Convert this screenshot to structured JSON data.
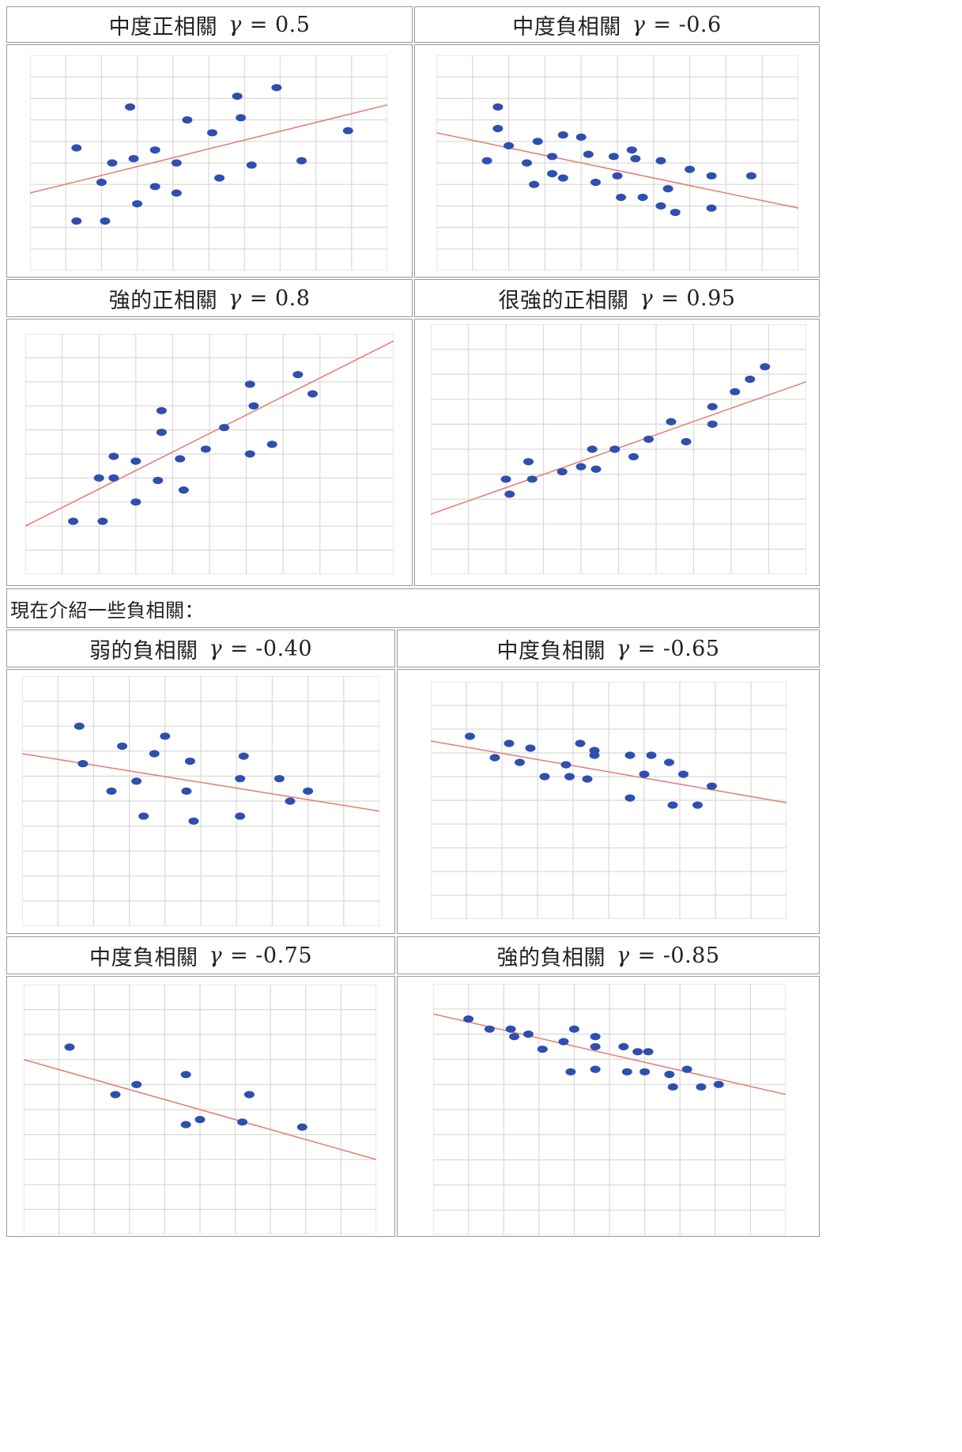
{
  "colors": {
    "point": "#2f4fae",
    "trend": "#e97a70",
    "grid": "#d9d9d9",
    "border": "#9a9a9a"
  },
  "intro_text": "現在介紹一些負相關：",
  "panels": [
    {
      "title": "中度正相關",
      "symbol": "γ",
      "value": "= 0.5"
    },
    {
      "title": "中度負相關",
      "symbol": "γ",
      "value": "= -0.6"
    },
    {
      "title": "強的正相關",
      "symbol": "γ",
      "value": "= 0.8"
    },
    {
      "title": "很強的正相關",
      "symbol": "γ",
      "value": "= 0.95"
    },
    {
      "title": "弱的負相關",
      "symbol": "γ",
      "value": "= -0.40"
    },
    {
      "title": "中度負相關",
      "symbol": "γ",
      "value": "= -0.65"
    },
    {
      "title": "中度負相關",
      "symbol": "γ",
      "value": "= -0.75"
    },
    {
      "title": "強的負相關",
      "symbol": "γ",
      "value": "= -0.85"
    }
  ],
  "chart_data": [
    {
      "type": "scatter",
      "title": "中度正相關 γ = 0.5",
      "xlim": [
        0,
        10
      ],
      "ylim": [
        0,
        10
      ],
      "grid": true,
      "points": [
        [
          1.3,
          2.3
        ],
        [
          1.3,
          5.7
        ],
        [
          2.1,
          2.3
        ],
        [
          2.0,
          4.1
        ],
        [
          2.3,
          5.0
        ],
        [
          2.8,
          7.6
        ],
        [
          2.9,
          5.2
        ],
        [
          3.0,
          3.1
        ],
        [
          3.5,
          3.9
        ],
        [
          3.5,
          5.6
        ],
        [
          4.1,
          5.0
        ],
        [
          4.1,
          3.6
        ],
        [
          4.4,
          7.0
        ],
        [
          5.1,
          6.4
        ],
        [
          5.3,
          4.3
        ],
        [
          5.8,
          8.1
        ],
        [
          5.9,
          7.1
        ],
        [
          6.2,
          4.9
        ],
        [
          6.9,
          8.5
        ],
        [
          7.6,
          5.1
        ],
        [
          8.9,
          6.5
        ]
      ],
      "trend": [
        [
          0,
          3.6
        ],
        [
          10,
          7.7
        ]
      ]
    },
    {
      "type": "scatter",
      "title": "中度負相關 γ = -0.6",
      "xlim": [
        0,
        10
      ],
      "ylim": [
        0,
        10
      ],
      "grid": true,
      "points": [
        [
          1.4,
          5.1
        ],
        [
          1.7,
          7.6
        ],
        [
          1.7,
          6.6
        ],
        [
          2.0,
          5.8
        ],
        [
          2.5,
          5.0
        ],
        [
          2.8,
          6.0
        ],
        [
          2.7,
          4.0
        ],
        [
          3.2,
          4.5
        ],
        [
          3.2,
          5.3
        ],
        [
          3.5,
          6.3
        ],
        [
          3.5,
          4.3
        ],
        [
          4.0,
          6.2
        ],
        [
          4.2,
          5.4
        ],
        [
          4.4,
          4.1
        ],
        [
          4.9,
          5.3
        ],
        [
          5.0,
          4.4
        ],
        [
          5.1,
          3.4
        ],
        [
          5.4,
          5.6
        ],
        [
          5.5,
          5.2
        ],
        [
          5.7,
          3.4
        ],
        [
          6.2,
          5.1
        ],
        [
          6.2,
          3.0
        ],
        [
          6.4,
          3.8
        ],
        [
          6.6,
          2.7
        ],
        [
          7.0,
          4.7
        ],
        [
          7.6,
          4.4
        ],
        [
          7.6,
          2.9
        ],
        [
          8.7,
          4.4
        ]
      ],
      "trend": [
        [
          0,
          6.4
        ],
        [
          10,
          2.9
        ]
      ]
    },
    {
      "type": "scatter",
      "title": "強的正相關 γ = 0.8",
      "xlim": [
        0,
        10
      ],
      "ylim": [
        0,
        10
      ],
      "grid": true,
      "points": [
        [
          1.3,
          2.2
        ],
        [
          2.1,
          2.2
        ],
        [
          2.0,
          4.0
        ],
        [
          2.4,
          4.0
        ],
        [
          2.4,
          4.9
        ],
        [
          3.0,
          3.0
        ],
        [
          3.0,
          4.7
        ],
        [
          3.7,
          5.9
        ],
        [
          3.7,
          6.8
        ],
        [
          3.6,
          3.9
        ],
        [
          4.2,
          4.8
        ],
        [
          4.3,
          3.5
        ],
        [
          4.9,
          5.2
        ],
        [
          5.4,
          6.1
        ],
        [
          6.1,
          7.9
        ],
        [
          6.2,
          7.0
        ],
        [
          6.1,
          5.0
        ],
        [
          6.7,
          5.4
        ],
        [
          7.4,
          8.3
        ],
        [
          7.8,
          7.5
        ]
      ],
      "trend": [
        [
          0,
          2.0
        ],
        [
          10,
          9.7
        ]
      ]
    },
    {
      "type": "scatter",
      "title": "很強的正相關 γ = 0.95",
      "xlim": [
        0,
        10
      ],
      "ylim": [
        0,
        10
      ],
      "grid": true,
      "points": [
        [
          2.0,
          3.8
        ],
        [
          2.1,
          3.2
        ],
        [
          2.6,
          4.5
        ],
        [
          2.7,
          3.8
        ],
        [
          3.5,
          4.1
        ],
        [
          4.0,
          4.3
        ],
        [
          4.3,
          5.0
        ],
        [
          4.4,
          4.2
        ],
        [
          4.9,
          5.0
        ],
        [
          5.4,
          4.7
        ],
        [
          5.8,
          5.4
        ],
        [
          6.4,
          6.1
        ],
        [
          6.8,
          5.3
        ],
        [
          7.5,
          6.7
        ],
        [
          7.5,
          6.0
        ],
        [
          8.1,
          7.3
        ],
        [
          8.5,
          7.8
        ],
        [
          8.9,
          8.3
        ]
      ],
      "trend": [
        [
          0,
          2.4
        ],
        [
          10,
          7.7
        ]
      ]
    },
    {
      "type": "scatter",
      "title": "弱的負相關 γ = -0.40",
      "xlim": [
        0,
        10
      ],
      "ylim": [
        0,
        10
      ],
      "grid": true,
      "points": [
        [
          1.6,
          8.0
        ],
        [
          1.7,
          6.5
        ],
        [
          2.5,
          5.4
        ],
        [
          2.8,
          7.2
        ],
        [
          3.2,
          5.8
        ],
        [
          3.4,
          4.4
        ],
        [
          3.7,
          6.9
        ],
        [
          4.0,
          7.6
        ],
        [
          4.6,
          5.4
        ],
        [
          4.7,
          6.6
        ],
        [
          4.8,
          4.2
        ],
        [
          6.1,
          5.9
        ],
        [
          6.2,
          6.8
        ],
        [
          6.1,
          4.4
        ],
        [
          7.2,
          5.9
        ],
        [
          7.5,
          5.0
        ],
        [
          8.0,
          5.4
        ]
      ],
      "trend": [
        [
          0,
          6.9
        ],
        [
          10,
          4.6
        ]
      ]
    },
    {
      "type": "scatter",
      "title": "中度負相關 γ = -0.65",
      "xlim": [
        0,
        10
      ],
      "ylim": [
        0,
        10
      ],
      "grid": true,
      "points": [
        [
          1.1,
          7.7
        ],
        [
          1.8,
          6.8
        ],
        [
          2.2,
          7.4
        ],
        [
          2.5,
          6.6
        ],
        [
          2.8,
          7.2
        ],
        [
          3.2,
          6.0
        ],
        [
          3.8,
          6.5
        ],
        [
          3.9,
          6.0
        ],
        [
          4.2,
          7.4
        ],
        [
          4.4,
          5.9
        ],
        [
          4.6,
          7.1
        ],
        [
          4.6,
          6.9
        ],
        [
          5.6,
          6.9
        ],
        [
          5.6,
          5.1
        ],
        [
          6.0,
          6.1
        ],
        [
          6.2,
          6.9
        ],
        [
          6.7,
          6.6
        ],
        [
          6.8,
          4.8
        ],
        [
          7.1,
          6.1
        ],
        [
          7.5,
          4.8
        ],
        [
          7.9,
          5.6
        ]
      ],
      "trend": [
        [
          0,
          7.5
        ],
        [
          10,
          4.9
        ]
      ]
    },
    {
      "type": "scatter",
      "title": "中度負相關 γ = -0.75",
      "xlim": [
        0,
        10
      ],
      "ylim": [
        0,
        10
      ],
      "grid": true,
      "points": [
        [
          1.3,
          7.5
        ],
        [
          2.6,
          5.6
        ],
        [
          3.2,
          6.0
        ],
        [
          4.6,
          6.4
        ],
        [
          4.6,
          4.4
        ],
        [
          5.0,
          4.6
        ],
        [
          6.2,
          4.5
        ],
        [
          6.4,
          5.6
        ],
        [
          7.9,
          4.3
        ]
      ],
      "trend": [
        [
          0,
          7.0
        ],
        [
          10,
          3.0
        ]
      ]
    },
    {
      "type": "scatter",
      "title": "強的負相關 γ = -0.85",
      "xlim": [
        0,
        10
      ],
      "ylim": [
        0,
        10
      ],
      "grid": true,
      "points": [
        [
          1.0,
          8.6
        ],
        [
          1.6,
          8.2
        ],
        [
          2.2,
          8.2
        ],
        [
          2.3,
          7.9
        ],
        [
          2.7,
          8.0
        ],
        [
          3.1,
          7.4
        ],
        [
          3.7,
          7.7
        ],
        [
          3.9,
          6.5
        ],
        [
          4.0,
          8.2
        ],
        [
          4.6,
          6.6
        ],
        [
          4.6,
          7.5
        ],
        [
          4.6,
          7.9
        ],
        [
          5.5,
          6.5
        ],
        [
          5.4,
          7.5
        ],
        [
          5.8,
          7.3
        ],
        [
          6.0,
          6.5
        ],
        [
          6.1,
          7.3
        ],
        [
          6.7,
          6.4
        ],
        [
          6.8,
          5.9
        ],
        [
          7.2,
          6.6
        ],
        [
          7.6,
          5.9
        ],
        [
          8.1,
          6.0
        ]
      ],
      "trend": [
        [
          0,
          8.8
        ],
        [
          10,
          5.6
        ]
      ]
    }
  ]
}
